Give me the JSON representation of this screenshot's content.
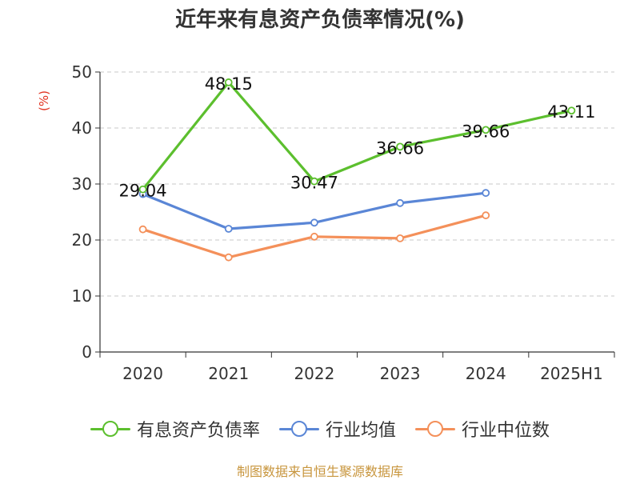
{
  "chart_data": {
    "type": "line",
    "title": "近年来有息资产负债率情况(%)",
    "ylabel": "(%)",
    "xlabel": "",
    "categories": [
      "2020",
      "2021",
      "2022",
      "2023",
      "2024",
      "2025H1"
    ],
    "ylim": [
      0,
      50
    ],
    "yticks": [
      0,
      10,
      20,
      30,
      40,
      50
    ],
    "grid": true,
    "legend_position": "bottom",
    "series": [
      {
        "name": "有息资产负债率",
        "color": "#5cbf2e",
        "values": [
          29.04,
          48.15,
          30.47,
          36.66,
          39.66,
          43.11
        ],
        "data_labels": [
          "29.04",
          "48.15",
          "30.47",
          "36.66",
          "39.66",
          "43.11"
        ]
      },
      {
        "name": "行业均值",
        "color": "#5a86d6",
        "values": [
          28.2,
          22.0,
          23.1,
          26.6,
          28.4,
          null
        ]
      },
      {
        "name": "行业中位数",
        "color": "#f4905a",
        "values": [
          21.9,
          16.9,
          20.6,
          20.3,
          24.4,
          null
        ]
      }
    ]
  },
  "footer": {
    "source": "制图数据来自恒生聚源数据库"
  }
}
